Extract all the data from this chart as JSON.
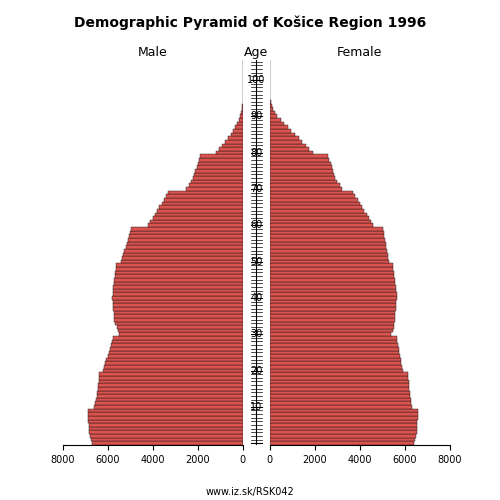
{
  "title": "Demographic Pyramid of Košice Region 1996",
  "label_male": "Male",
  "label_female": "Female",
  "label_age": "Age",
  "xlim": 8000,
  "bar_color": "#d9534f",
  "edge_color": "#111111",
  "background_color": "#ffffff",
  "watermark": "www.iz.sk/RSK042",
  "male": [
    6700,
    6750,
    6800,
    6820,
    6830,
    6840,
    6850,
    6860,
    6870,
    6880,
    6600,
    6550,
    6500,
    6480,
    6460,
    6440,
    6420,
    6400,
    6380,
    6360,
    6200,
    6150,
    6100,
    6050,
    6000,
    5950,
    5900,
    5850,
    5800,
    5750,
    5500,
    5550,
    5600,
    5650,
    5700,
    5720,
    5730,
    5740,
    5750,
    5760,
    5800,
    5780,
    5760,
    5740,
    5720,
    5700,
    5680,
    5660,
    5640,
    5620,
    5400,
    5350,
    5300,
    5250,
    5200,
    5150,
    5100,
    5050,
    5000,
    4950,
    4200,
    4100,
    4000,
    3900,
    3800,
    3700,
    3600,
    3500,
    3400,
    3300,
    2500,
    2400,
    2300,
    2200,
    2150,
    2100,
    2050,
    2000,
    1950,
    1900,
    1200,
    1050,
    900,
    780,
    660,
    540,
    430,
    330,
    240,
    170,
    110,
    70,
    40,
    20,
    10,
    5,
    2,
    1,
    0,
    0,
    0,
    0,
    0,
    0,
    0,
    0
  ],
  "female": [
    6400,
    6450,
    6500,
    6520,
    6530,
    6540,
    6550,
    6560,
    6570,
    6580,
    6300,
    6280,
    6260,
    6240,
    6220,
    6200,
    6180,
    6160,
    6140,
    6120,
    5900,
    5870,
    5840,
    5810,
    5780,
    5750,
    5720,
    5690,
    5660,
    5630,
    5400,
    5450,
    5500,
    5520,
    5540,
    5560,
    5580,
    5600,
    5610,
    5620,
    5650,
    5630,
    5610,
    5590,
    5570,
    5550,
    5530,
    5510,
    5490,
    5470,
    5300,
    5270,
    5240,
    5210,
    5180,
    5150,
    5120,
    5090,
    5060,
    5030,
    4600,
    4500,
    4400,
    4300,
    4200,
    4100,
    4000,
    3900,
    3800,
    3700,
    3200,
    3100,
    3000,
    2900,
    2850,
    2800,
    2750,
    2700,
    2650,
    2600,
    1900,
    1750,
    1600,
    1440,
    1280,
    1120,
    960,
    800,
    640,
    480,
    340,
    230,
    140,
    80,
    40,
    18,
    8,
    3,
    1,
    0,
    0,
    0,
    0,
    0,
    0,
    0
  ]
}
